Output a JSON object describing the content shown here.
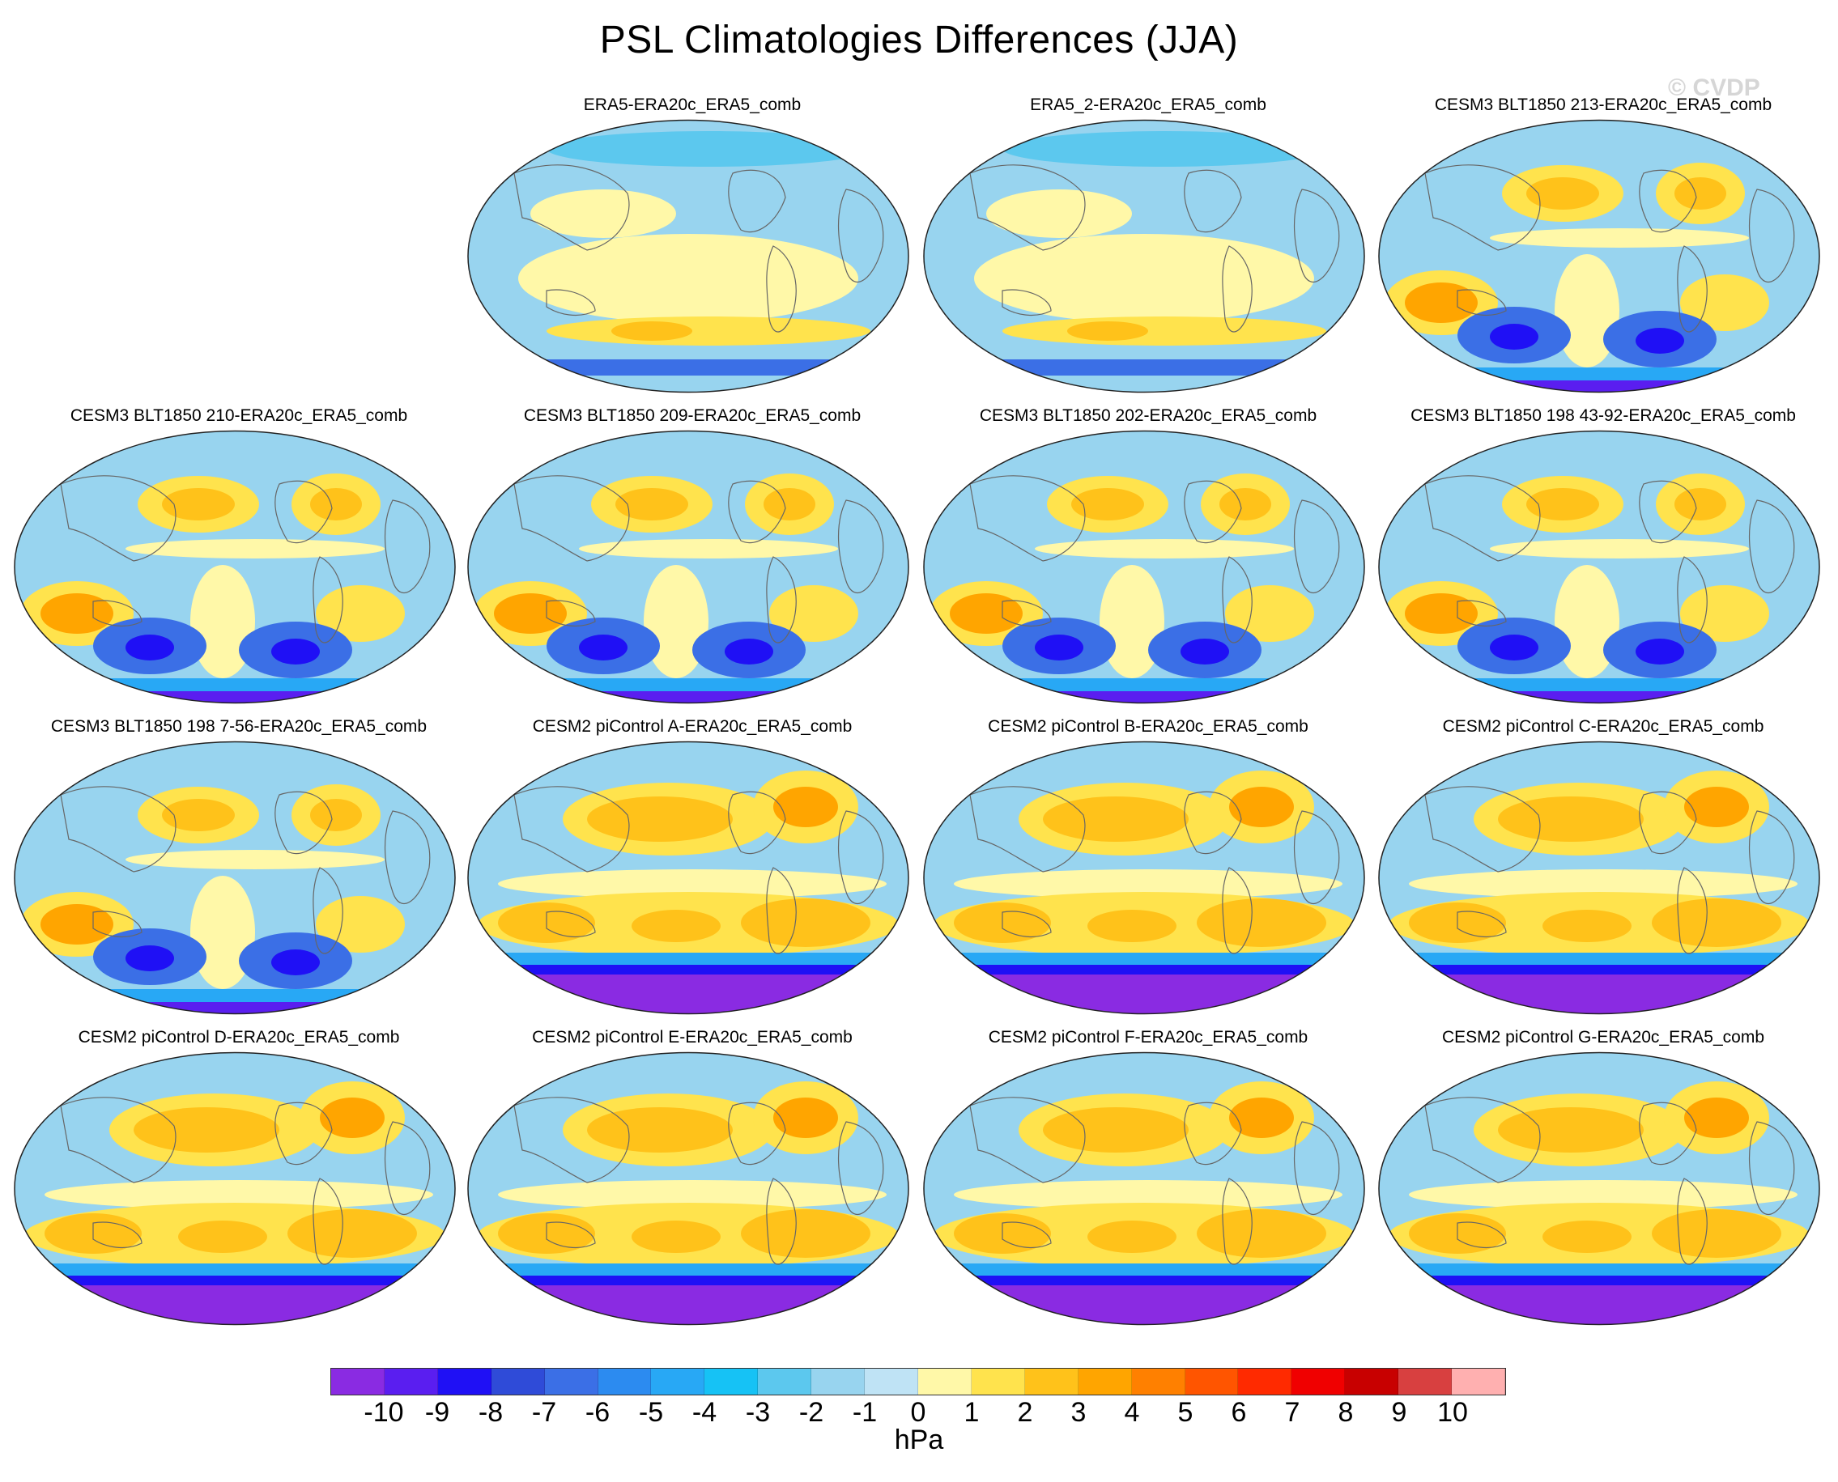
{
  "title": "PSL Climatologies Differences (JJA)",
  "watermark": "© CVDP",
  "panels": [
    {
      "name": "ERA5-ERA20c_ERA5_comb",
      "style": "obs"
    },
    {
      "name": "ERA5_2-ERA20c_ERA5_comb",
      "style": "obs"
    },
    {
      "name": "CESM3 BLT1850 213-ERA20c_ERA5_comb",
      "style": "cesm3"
    },
    {
      "name": "CESM3 BLT1850 210-ERA20c_ERA5_comb",
      "style": "cesm3"
    },
    {
      "name": "CESM3 BLT1850 209-ERA20c_ERA5_comb",
      "style": "cesm3"
    },
    {
      "name": "CESM3 BLT1850 202-ERA20c_ERA5_comb",
      "style": "cesm3"
    },
    {
      "name": "CESM3 BLT1850 198 43-92-ERA20c_ERA5_comb",
      "style": "cesm3"
    },
    {
      "name": "CESM3 BLT1850 198 7-56-ERA20c_ERA5_comb",
      "style": "cesm3"
    },
    {
      "name": "CESM2 piControl A-ERA20c_ERA5_comb",
      "style": "cesm2"
    },
    {
      "name": "CESM2 piControl B-ERA20c_ERA5_comb",
      "style": "cesm2"
    },
    {
      "name": "CESM2 piControl C-ERA20c_ERA5_comb",
      "style": "cesm2"
    },
    {
      "name": "CESM2 piControl D-ERA20c_ERA5_comb",
      "style": "cesm2"
    },
    {
      "name": "CESM2 piControl E-ERA20c_ERA5_comb",
      "style": "cesm2"
    },
    {
      "name": "CESM2 piControl F-ERA20c_ERA5_comb",
      "style": "cesm2"
    },
    {
      "name": "CESM2 piControl G-ERA20c_ERA5_comb",
      "style": "cesm2"
    }
  ],
  "colorbar": {
    "labels": [
      "-10",
      "-9",
      "-8",
      "-7",
      "-6",
      "-5",
      "-4",
      "-3",
      "-2",
      "-1",
      "0",
      "1",
      "2",
      "3",
      "4",
      "5",
      "6",
      "7",
      "8",
      "9",
      "10"
    ],
    "colors": [
      "#8a2be2",
      "#5a1ef0",
      "#1f10f5",
      "#2f4bd8",
      "#3b6fe6",
      "#2c8bf0",
      "#28a8f5",
      "#16c2f5",
      "#5cc8ee",
      "#98d4ef",
      "#bfe3f5",
      "#fff8a8",
      "#ffe34d",
      "#ffc21a",
      "#ffa500",
      "#ff8000",
      "#ff5500",
      "#ff2a00",
      "#f00000",
      "#c80000",
      "#d84040",
      "#ffb0b0"
    ],
    "units": "hPa"
  }
}
